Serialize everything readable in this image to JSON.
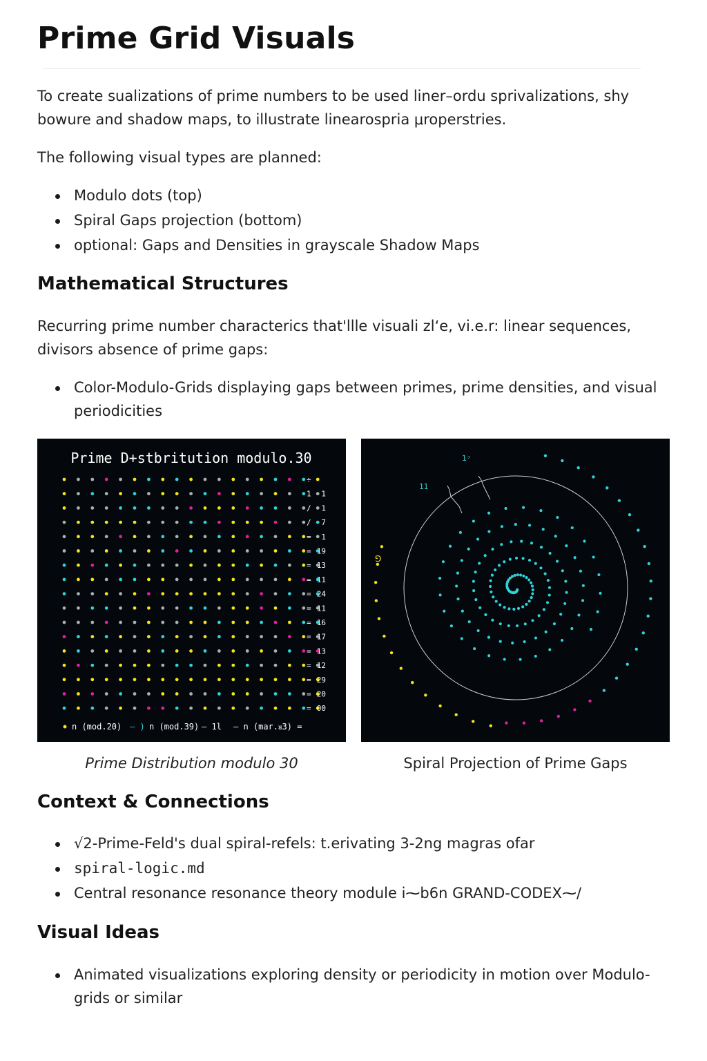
{
  "title": "Prime Grid Visuals",
  "intro": "To create sualizations of prime numbers to be used liner–ordu sprivalizations, shy bowure and shadow maps, to illustrate linearospria μroperstries.",
  "planned_lead": "The following visual types are planned:",
  "planned_items": [
    "Modulo dots (top)",
    "Spiral Gaps projection (bottom)",
    "optional: Gaps and Densities in grayscale Shadow Maps"
  ],
  "math": {
    "heading": "Mathematical Structures",
    "text": "Recurring prime number characterics that'llle visuali zl‘e, vi.e.r: linear sequences, divisors absence of prime gaps:",
    "items": [
      "Color-Modulo-Grids displaying gaps between primes, prime densities, and visual periodicities"
    ]
  },
  "figures": {
    "grid": {
      "title": "Prime D+stbritutіon modulo.30",
      "caption": "Prime Distribution modulo 30",
      "right_labels": [
        [
          "÷",
          ""
        ],
        [
          "1",
          "1"
        ],
        [
          "/",
          "1"
        ],
        [
          "/",
          "7"
        ],
        [
          "=",
          "1"
        ],
        [
          "=",
          "19"
        ],
        [
          "=",
          "13"
        ],
        [
          "=",
          "11"
        ],
        [
          "=",
          "24"
        ],
        [
          "=",
          "11"
        ],
        [
          "=",
          "16"
        ],
        [
          "=",
          "17"
        ],
        [
          "=",
          "13"
        ],
        [
          "=",
          "12"
        ],
        [
          "=",
          "29"
        ],
        [
          "=",
          "20"
        ],
        [
          "=",
          "00"
        ]
      ],
      "legend": [
        "n (mod.20)",
        "–  )",
        "n (mod.39)",
        "–  1l",
        "–  n (mar.ᴚ3) ="
      ],
      "colors": {
        "yellow": "#f2e51c",
        "cyan": "#2fd3d6",
        "gray": "#a9b0ad",
        "magenta": "#e0209a"
      }
    },
    "spiral": {
      "caption": "Spiral Projection of Prime Gaps",
      "labels": [
        "1ᵓ",
        "11",
        "⅁"
      ],
      "colors": {
        "cyan": "#2fd3d6",
        "yellow": "#f2e51c",
        "magenta": "#e0209a",
        "ring": "#cfcfcf"
      }
    }
  },
  "context": {
    "heading": "Context & Connections",
    "items": [
      "√2-Prime-Feld's dual spiral-refels: t.erivating 3-2ng magras ofar",
      "spiral-logic.md",
      "Central resonance resonance theory module i⁓b6n GRAND-CODEX⁓/"
    ]
  },
  "visual_ideas": {
    "heading": "Visual Ideas",
    "items": [
      "Animated visualizations exploring density or periodicity in motion over Modulo-grids or similar"
    ]
  }
}
